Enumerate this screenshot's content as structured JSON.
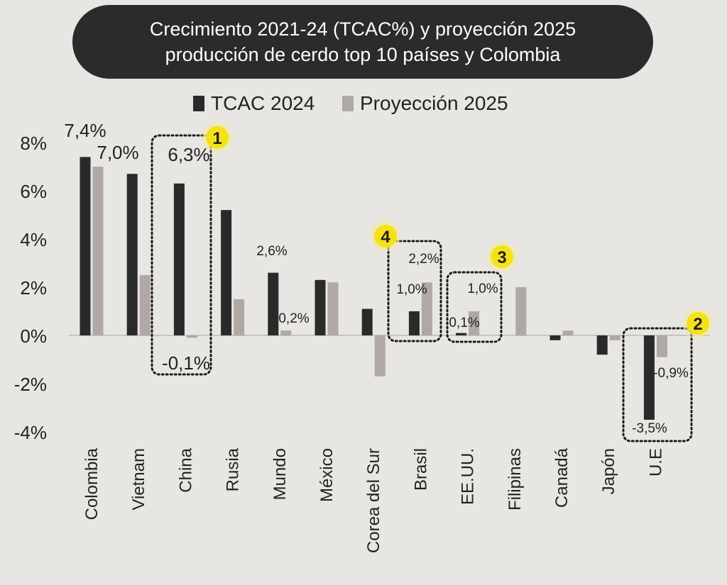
{
  "title": {
    "line1": "Crecimiento 2021-24 (TCAC%) y proyección 2025",
    "line2": "producción de cerdo top 10 países y Colombia"
  },
  "colors": {
    "background": "#e8e6e3",
    "title_bg": "#2b2b2b",
    "tcac": "#2a2a2a",
    "proyeccion": "#b0a8a5",
    "badge": "#f5e11a"
  },
  "chart_data": {
    "type": "bar",
    "title": "Crecimiento 2021-24 (TCAC%) y proyección 2025 producción de cerdo top 10 países y Colombia",
    "xlabel": "",
    "ylabel": "",
    "ylim": [
      -4,
      8
    ],
    "yticks": [
      8,
      6,
      4,
      2,
      0,
      -2,
      -4
    ],
    "ytick_labels": [
      "8%",
      "6%",
      "4%",
      "2%",
      "0%",
      "-2%",
      "-4%"
    ],
    "legend": [
      "TCAC 2024",
      "Proyección 2025"
    ],
    "categories": [
      "Colombia",
      "Vietnam",
      "China",
      "Rusia",
      "Mundo",
      "México",
      "Corea del Sur",
      "Brasil",
      "EE.UU.",
      "Filipinas",
      "Canadá",
      "Japón",
      "U.E"
    ],
    "series": [
      {
        "name": "TCAC 2024",
        "values": [
          7.4,
          6.7,
          6.3,
          5.2,
          2.6,
          2.3,
          1.1,
          1.0,
          0.1,
          0.0,
          -0.2,
          -0.8,
          -3.5
        ]
      },
      {
        "name": "Proyección 2025",
        "values": [
          7.0,
          2.5,
          -0.1,
          1.5,
          0.2,
          2.2,
          -1.7,
          2.2,
          1.0,
          2.0,
          0.2,
          -0.2,
          -0.9
        ]
      }
    ],
    "data_labels": [
      {
        "text": "7,4%",
        "category": "Colombia",
        "series": "TCAC 2024",
        "size": "big"
      },
      {
        "text": "7,0%",
        "category": "Colombia",
        "series": "Proyección 2025",
        "size": "big"
      },
      {
        "text": "6,3%",
        "category": "China",
        "series": "TCAC 2024",
        "size": "big"
      },
      {
        "text": "-0,1%",
        "category": "China",
        "series": "Proyección 2025",
        "size": "big"
      },
      {
        "text": "2,6%",
        "category": "Mundo",
        "series": "TCAC 2024",
        "size": "small"
      },
      {
        "text": "0,2%",
        "category": "Mundo",
        "series": "Proyección 2025",
        "size": "small"
      },
      {
        "text": "2,2%",
        "category": "Brasil",
        "series": "Proyección 2025",
        "size": "small"
      },
      {
        "text": "1,0%",
        "category": "Brasil",
        "series": "TCAC 2024",
        "size": "small"
      },
      {
        "text": "0,1%",
        "category": "EE.UU.",
        "series": "TCAC 2024",
        "size": "small"
      },
      {
        "text": "1,0%",
        "category": "EE.UU.",
        "series": "Proyección 2025",
        "size": "small"
      },
      {
        "text": "-0,9%",
        "category": "U.E",
        "series": "Proyección 2025",
        "size": "small"
      },
      {
        "text": "-3,5%",
        "category": "U.E",
        "series": "TCAC 2024",
        "size": "small"
      }
    ],
    "highlights": [
      {
        "badge": "1",
        "category": "China"
      },
      {
        "badge": "2",
        "category": "U.E"
      },
      {
        "badge": "3",
        "category": "EE.UU."
      },
      {
        "badge": "4",
        "category": "Brasil"
      }
    ]
  }
}
